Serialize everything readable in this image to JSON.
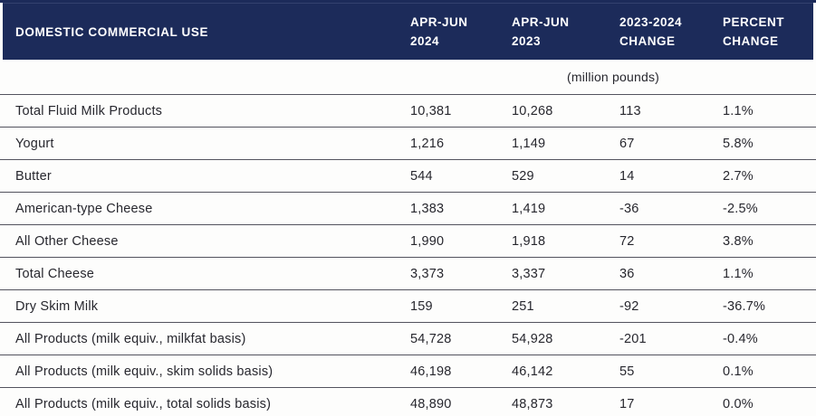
{
  "colors": {
    "header_bg": "#1c2b5a",
    "header_text": "#ffffff",
    "rule": "#53535e",
    "text": "#27272e",
    "background": "#fdfdfc"
  },
  "chart_data": {
    "type": "table",
    "title": "DOMESTIC COMMERCIAL USE",
    "unit_note": "(million pounds)",
    "columns": [
      {
        "label": "APR-JUN 2024",
        "line1": "APR-JUN",
        "line2": "2024"
      },
      {
        "label": "APR-JUN 2023",
        "line1": "APR-JUN",
        "line2": "2023"
      },
      {
        "label": "2023-2024 CHANGE",
        "line1": "2023-2024",
        "line2": "CHANGE"
      },
      {
        "label": "PERCENT CHANGE",
        "line1": "PERCENT",
        "line2": "CHANGE"
      }
    ],
    "rows": [
      {
        "label": "Total Fluid Milk Products",
        "values": [
          "10,381",
          "10,268",
          "113",
          "1.1%"
        ]
      },
      {
        "label": "Yogurt",
        "values": [
          "1,216",
          "1,149",
          "67",
          "5.8%"
        ]
      },
      {
        "label": "Butter",
        "values": [
          "544",
          "529",
          "14",
          "2.7%"
        ]
      },
      {
        "label": "American-type Cheese",
        "values": [
          "1,383",
          "1,419",
          "-36",
          "-2.5%"
        ]
      },
      {
        "label": "All Other Cheese",
        "values": [
          "1,990",
          "1,918",
          "72",
          "3.8%"
        ]
      },
      {
        "label": "Total Cheese",
        "values": [
          "3,373",
          "3,337",
          "36",
          "1.1%"
        ]
      },
      {
        "label": "Dry Skim Milk",
        "values": [
          "159",
          "251",
          "-92",
          "-36.7%"
        ]
      },
      {
        "label": "All Products (milk equiv., milkfat basis)",
        "values": [
          "54,728",
          "54,928",
          "-201",
          "-0.4%"
        ]
      },
      {
        "label": "All Products (milk equiv., skim solids basis)",
        "values": [
          "46,198",
          "46,142",
          "55",
          "0.1%"
        ]
      },
      {
        "label": "All Products (milk equiv., total solids basis)",
        "values": [
          "48,890",
          "48,873",
          "17",
          "0.0%"
        ]
      }
    ]
  }
}
